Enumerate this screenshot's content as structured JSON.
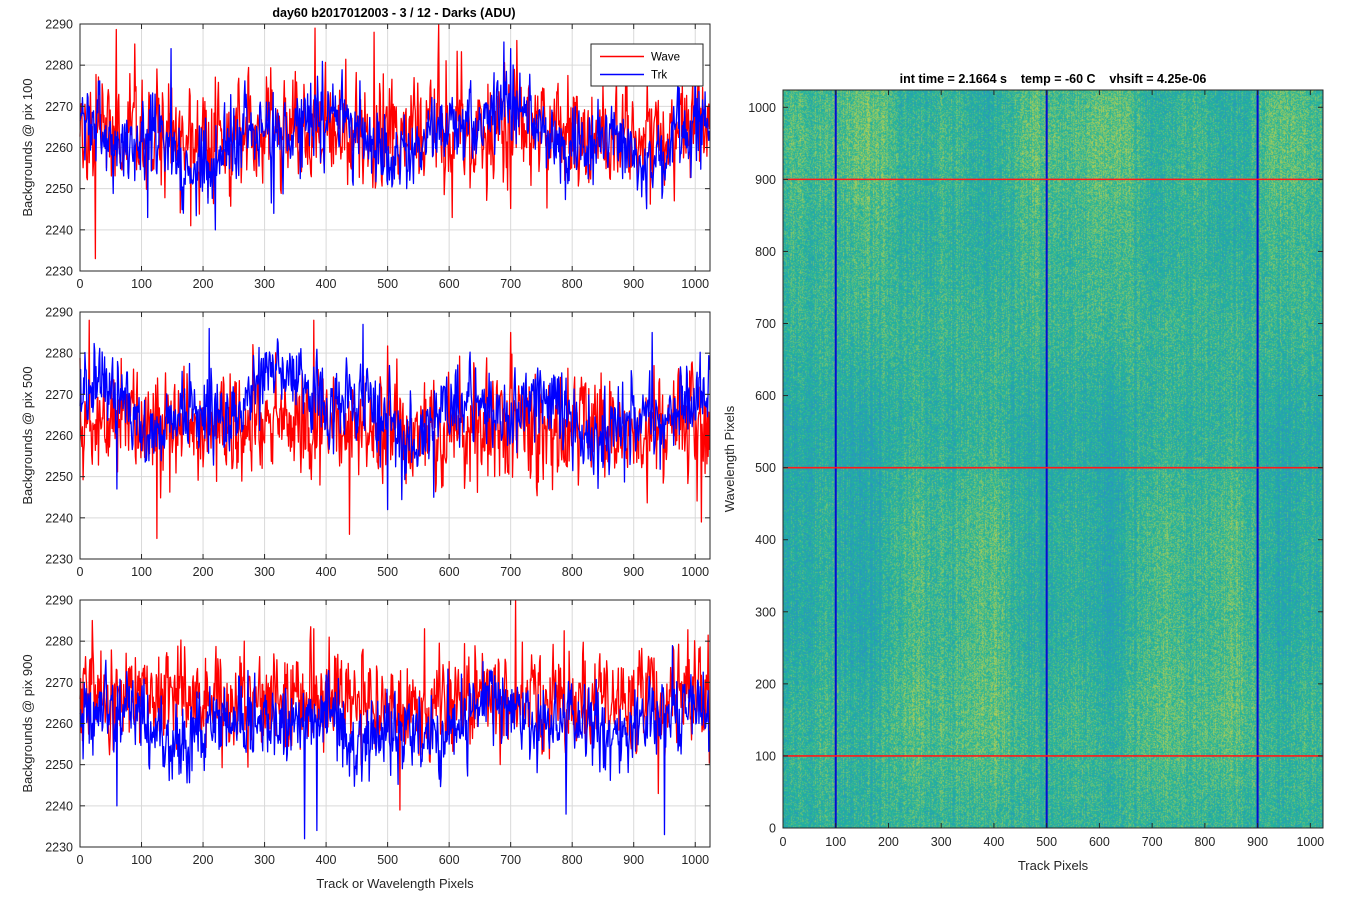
{
  "figure": {
    "title_left": "day60 b2017012003 - 3 / 12 - Darks (ADU)",
    "title_right": "int time = 2.1664 s    temp = -60 C    vhsift = 4.25e-06"
  },
  "colors": {
    "wave": "#ff0000",
    "trk": "#0000ff",
    "image_low": "#2a8fc8",
    "image_mid": "#21b49b",
    "image_high": "#b8cf52",
    "marker_row": "#ff1a1a",
    "marker_col": "#0a0ad0"
  },
  "chart_data": [
    {
      "type": "line",
      "title": "day60 b2017012003 - 3 / 12 - Darks (ADU)",
      "xlabel": "",
      "ylabel": "Backgrounds @ pix 100",
      "xlim": [
        0,
        1024
      ],
      "ylim": [
        2230,
        2290
      ],
      "xticks": [
        "0",
        "100",
        "200",
        "300",
        "400",
        "500",
        "600",
        "700",
        "800",
        "900",
        "1000"
      ],
      "yticks": [
        "2230",
        "2240",
        "2250",
        "2260",
        "2270",
        "2280",
        "2290"
      ],
      "grid": true,
      "legend": {
        "position": "top-right",
        "entries": [
          "Wave",
          "Trk"
        ]
      },
      "series": [
        {
          "name": "Wave",
          "color": "#ff0000",
          "mean": 2264,
          "noise_std": 6.5,
          "drift_amp": 1.5,
          "seed": 11,
          "extremes": [
            [
              25,
              2233
            ],
            [
              382,
              2289
            ],
            [
              478,
              2288
            ],
            [
              710,
              2286
            ],
            [
              180,
              2241
            ],
            [
              605,
              2243
            ]
          ]
        },
        {
          "name": "Trk",
          "color": "#0000ff",
          "mean": 2263,
          "noise_std": 4.5,
          "drift_amp": 6,
          "seed": 23,
          "extremes": [
            [
              220,
              2240
            ],
            [
              148,
              2284
            ],
            [
              700,
              2284
            ],
            [
              1000,
              2284
            ],
            [
              110,
              2243
            ],
            [
              315,
              2244
            ]
          ]
        }
      ]
    },
    {
      "type": "line",
      "title": "",
      "xlabel": "",
      "ylabel": "Backgrounds @ pix 500",
      "xlim": [
        0,
        1024
      ],
      "ylim": [
        2230,
        2290
      ],
      "xticks": [
        "0",
        "100",
        "200",
        "300",
        "400",
        "500",
        "600",
        "700",
        "800",
        "900",
        "1000"
      ],
      "yticks": [
        "2230",
        "2240",
        "2250",
        "2260",
        "2270",
        "2280",
        "2290"
      ],
      "grid": true,
      "series": [
        {
          "name": "Wave",
          "color": "#ff0000",
          "mean": 2262,
          "noise_std": 6.5,
          "drift_amp": 1.5,
          "seed": 37,
          "extremes": [
            [
              125,
              2235
            ],
            [
              438,
              2236
            ],
            [
              1010,
              2239
            ],
            [
              15,
              2288
            ],
            [
              380,
              2288
            ],
            [
              700,
              2285
            ]
          ]
        },
        {
          "name": "Trk",
          "color": "#0000ff",
          "mean": 2266,
          "noise_std": 4.5,
          "drift_amp": 8,
          "seed": 41,
          "extremes": [
            [
              460,
              2287
            ],
            [
              210,
              2286
            ],
            [
              500,
              2242
            ],
            [
              575,
              2245
            ],
            [
              60,
              2247
            ],
            [
              930,
              2285
            ]
          ]
        }
      ]
    },
    {
      "type": "line",
      "title": "",
      "xlabel": "Track or Wavelength Pixels",
      "ylabel": "Backgrounds @ pix 900",
      "xlim": [
        0,
        1024
      ],
      "ylim": [
        2230,
        2290
      ],
      "xticks": [
        "0",
        "100",
        "200",
        "300",
        "400",
        "500",
        "600",
        "700",
        "800",
        "900",
        "1000"
      ],
      "yticks": [
        "2230",
        "2240",
        "2250",
        "2260",
        "2270",
        "2280",
        "2290"
      ],
      "grid": true,
      "series": [
        {
          "name": "Wave",
          "color": "#ff0000",
          "mean": 2266,
          "noise_std": 6,
          "drift_amp": 1.5,
          "seed": 53,
          "extremes": [
            [
              708,
              2290
            ],
            [
              20,
              2285
            ],
            [
              380,
              2283
            ],
            [
              560,
              2283
            ],
            [
              520,
              2239
            ],
            [
              940,
              2243
            ]
          ]
        },
        {
          "name": "Trk",
          "color": "#0000ff",
          "mean": 2260,
          "noise_std": 4.5,
          "drift_amp": 5,
          "seed": 59,
          "extremes": [
            [
              365,
              2232
            ],
            [
              950,
              2233
            ],
            [
              790,
              2238
            ],
            [
              385,
              2234
            ],
            [
              60,
              2240
            ],
            [
              620,
              2272
            ]
          ]
        }
      ]
    },
    {
      "type": "heatmap",
      "title": "int time = 2.1664 s    temp = -60 C    vhsift = 4.25e-06",
      "xlabel": "Track Pixels",
      "ylabel": "Wavelength Pixels",
      "xlim": [
        0,
        1024
      ],
      "ylim": [
        0,
        1024
      ],
      "xticks": [
        "0",
        "100",
        "200",
        "300",
        "400",
        "500",
        "600",
        "700",
        "800",
        "900",
        "1000"
      ],
      "yticks": [
        "0",
        "100",
        "200",
        "300",
        "400",
        "500",
        "600",
        "700",
        "800",
        "900",
        "1000"
      ],
      "colormap": "parula",
      "marker_rows": [
        100,
        500,
        900
      ],
      "marker_cols": [
        100,
        500,
        900
      ]
    }
  ]
}
